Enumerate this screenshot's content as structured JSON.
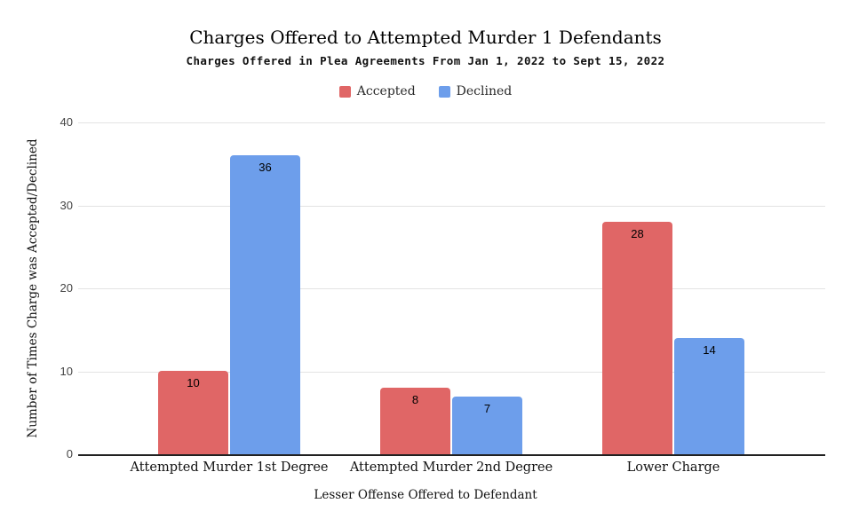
{
  "chart_data": {
    "type": "bar",
    "title": "Charges Offered to Attempted Murder 1 Defendants",
    "subtitle": "Charges Offered in Plea Agreements From Jan 1, 2022 to Sept 15, 2022",
    "categories": [
      "Attempted Murder 1st Degree",
      "Attempted Murder 2nd Degree",
      "Lower Charge"
    ],
    "series": [
      {
        "name": "Accepted",
        "color": "#e06666",
        "values": [
          10,
          8,
          28
        ]
      },
      {
        "name": "Declined",
        "color": "#6d9eeb",
        "values": [
          36,
          7,
          14
        ]
      }
    ],
    "xlabel": "Lesser Offense Offered to Defendant",
    "ylabel": "Number of Times Charge was Accepted/Declined",
    "ylim": [
      0,
      40
    ],
    "yticks": [
      0,
      10,
      20,
      30,
      40
    ],
    "grid": true,
    "legend_position": "top",
    "bar_value_labels": true,
    "colors": {
      "accepted": "#e06666",
      "declined": "#6d9eeb",
      "gridline": "#e3e3e3",
      "axis_line": "#212121",
      "tick_label": "#444444",
      "text": "#111111",
      "background": "#ffffff"
    }
  }
}
